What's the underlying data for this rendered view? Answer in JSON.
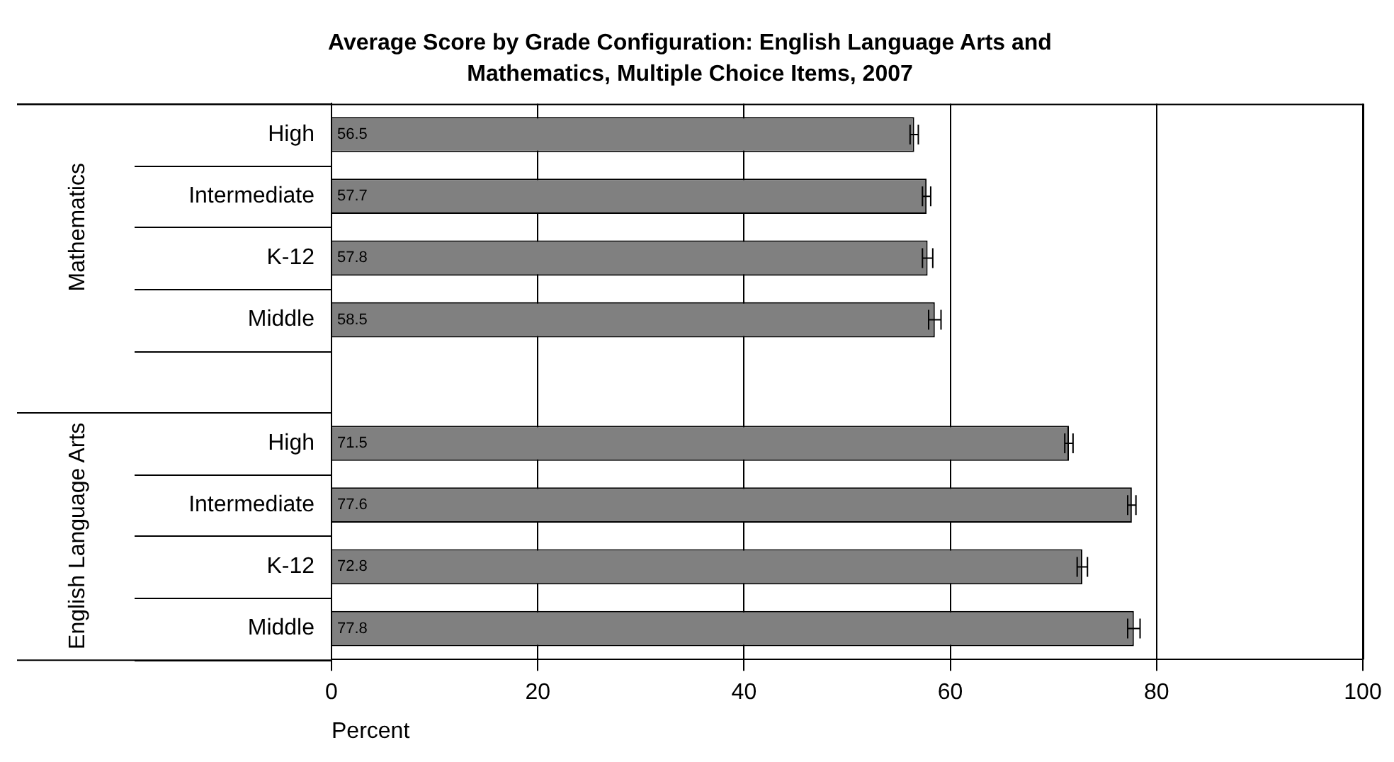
{
  "chart_data": {
    "type": "bar",
    "orientation": "horizontal",
    "title": "Average Score by Grade Configuration: English Language Arts and Mathematics, Multiple Choice Items, 2007",
    "xlabel": "Percent",
    "categories": [
      "High",
      "Intermediate",
      "K-12",
      "Middle",
      null,
      "High",
      "Intermediate",
      "K-12",
      "Middle"
    ],
    "values": [
      56.5,
      57.7,
      57.8,
      58.5,
      null,
      71.5,
      77.6,
      72.8,
      77.8
    ],
    "errors": [
      0.4,
      0.4,
      0.5,
      0.6,
      null,
      0.4,
      0.4,
      0.5,
      0.6
    ],
    "color": "#808080",
    "xlim": [
      0,
      100
    ],
    "xticks": [
      0,
      20,
      40,
      60,
      80,
      100
    ],
    "grid": "x",
    "data_labels": true,
    "legend": false,
    "annotations": [
      "Mathematics",
      "English Language Arts"
    ]
  }
}
